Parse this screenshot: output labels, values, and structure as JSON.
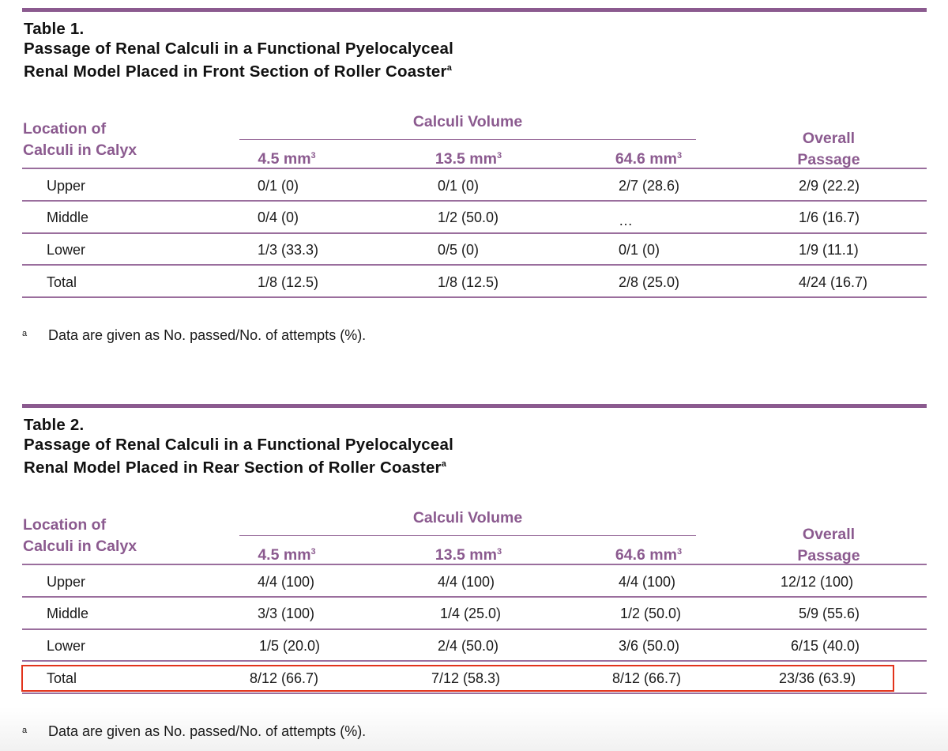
{
  "tables": [
    {
      "number": "Table 1.",
      "title_line1": "Passage of Renal Calculi in a Functional Pyelocalyceal",
      "title_line2": "Renal Model Placed in Front Section of Roller Coaster",
      "title_sup": "a",
      "headers": {
        "location_line1": "Location of",
        "location_line2": "Calculi in Calyx",
        "group": "Calculi Volume",
        "volumes": [
          "4.5 mm",
          "13.5 mm",
          "64.6 mm"
        ],
        "volume_sup": "3",
        "overall_line1": "Overall",
        "overall_line2": "Passage"
      },
      "rows": [
        {
          "label": "Upper",
          "values": [
            "0/1 (0)",
            "0/1 (0)",
            "2/7 (28.6)",
            "2/9 (22.2)"
          ]
        },
        {
          "label": "Middle",
          "values": [
            "0/4 (0)",
            "1/2 (50.0)",
            "…",
            "1/6 (16.7)"
          ]
        },
        {
          "label": "Lower",
          "values": [
            "1/3 (33.3)",
            "0/5 (0)",
            "0/1 (0)",
            "1/9 (11.1)"
          ]
        },
        {
          "label": "Total",
          "values": [
            "1/8 (12.5)",
            "1/8 (12.5)",
            "2/8 (25.0)",
            "4/24 (16.7)"
          ]
        }
      ],
      "footnote_mark": "a",
      "footnote": "Data are given as No. passed/No. of attempts (%)."
    },
    {
      "number": "Table 2.",
      "title_line1": "Passage of Renal Calculi in a Functional Pyelocalyceal",
      "title_line2": "Renal Model Placed in Rear Section of Roller Coaster",
      "title_sup": "a",
      "headers": {
        "location_line1": "Location of",
        "location_line2": "Calculi in Calyx",
        "group": "Calculi Volume",
        "volumes": [
          "4.5 mm",
          "13.5 mm",
          "64.6 mm"
        ],
        "volume_sup": "3",
        "overall_line1": "Overall",
        "overall_line2": "Passage"
      },
      "rows": [
        {
          "label": "Upper",
          "values": [
            "4/4 (100)",
            "4/4 (100)",
            "4/4 (100)",
            "12/12 (100)"
          ]
        },
        {
          "label": "Middle",
          "values": [
            "3/3 (100)",
            "1/4 (25.0)",
            "1/2 (50.0)",
            "5/9 (55.6)"
          ]
        },
        {
          "label": "Lower",
          "values": [
            "1/5 (20.0)",
            "2/4 (50.0)",
            "3/6 (50.0)",
            "6/15 (40.0)"
          ]
        },
        {
          "label": "Total",
          "values": [
            "8/12 (66.7)",
            "7/12 (58.3)",
            "8/12 (66.7)",
            "23/36 (63.9)"
          ]
        }
      ],
      "footnote_mark": "a",
      "footnote": "Data are given as No. passed/No. of attempts (%)."
    }
  ],
  "colors": {
    "accent": "#8b5a8f",
    "rule": "#9a6e9d",
    "highlight": "#e2331b"
  }
}
